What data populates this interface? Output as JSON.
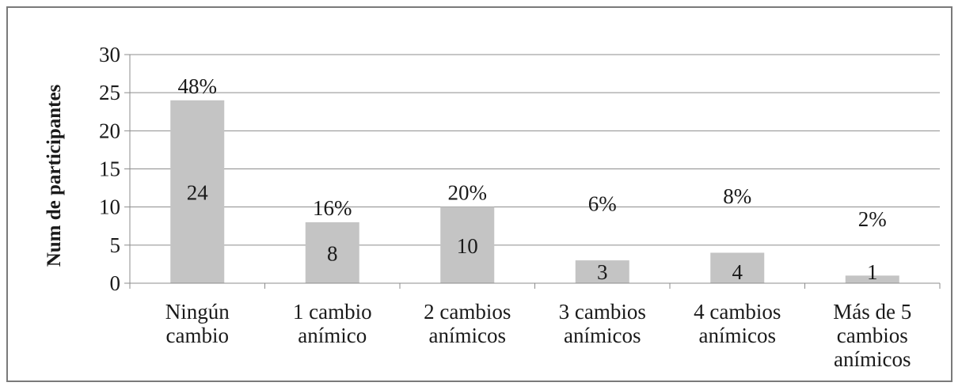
{
  "chart_data": {
    "type": "bar",
    "title": "",
    "xlabel": "",
    "ylabel": "Num de participantes",
    "ylim": [
      0,
      30
    ],
    "yticks": [
      0,
      5,
      10,
      15,
      20,
      25,
      30
    ],
    "grid": true,
    "legend": "none",
    "categories": [
      [
        "Ningún",
        "cambio"
      ],
      [
        "1 cambio",
        "anímico"
      ],
      [
        "2  cambios",
        "anímicos"
      ],
      [
        "3 cambios",
        "anímicos"
      ],
      [
        "4 cambios",
        "anímicos"
      ],
      [
        "Más de 5",
        "cambios",
        "anímicos"
      ]
    ],
    "values": [
      24,
      8,
      10,
      3,
      4,
      1
    ],
    "percent_labels": [
      "48%",
      "16%",
      "20%",
      "6%",
      "8%",
      "2%"
    ],
    "colors": {
      "bar": "#c4c4c4",
      "grid": "#8c8c8c",
      "axis": "#8c8c8c"
    }
  }
}
